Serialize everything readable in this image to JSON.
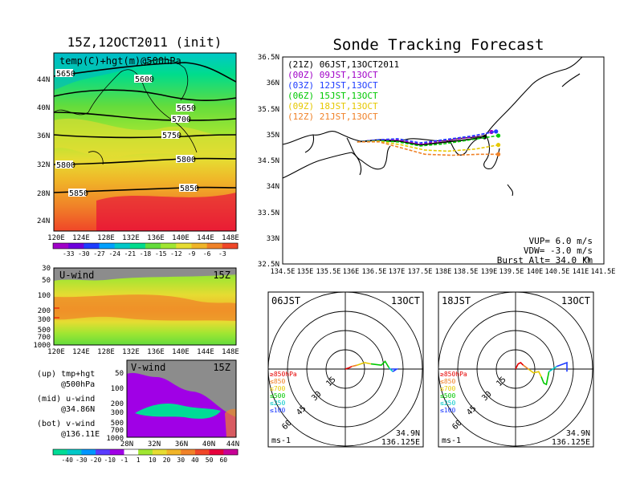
{
  "titles": {
    "left": "15Z,12OCT2011 (init)",
    "right": "Sonde Tracking Forecast"
  },
  "chart_data": [
    {
      "type": "heatmap",
      "panel": "temp500",
      "label": "temp(C)+hgt(m)@500hPa",
      "x_ticks": [
        "120E",
        "124E",
        "128E",
        "132E",
        "136E",
        "140E",
        "144E",
        "148E"
      ],
      "y_ticks": [
        "44N",
        "40N",
        "36N",
        "32N",
        "28N",
        "24N"
      ],
      "contour_labels": [
        "5650",
        "5600",
        "5650",
        "5700",
        "5750",
        "5800",
        "5800",
        "5850",
        "5850"
      ],
      "colorbar": {
        "ticks": [
          "-33",
          "-30",
          "-27",
          "-24",
          "-21",
          "-18",
          "-15",
          "-12",
          "-9",
          "-6",
          "-3"
        ],
        "colors": [
          "#a000c8",
          "#6e00dc",
          "#1e3cff",
          "#00a0ff",
          "#00c8c8",
          "#00dc8c",
          "#64dc3c",
          "#a0e632",
          "#e6dc32",
          "#f0b428",
          "#f08228",
          "#f04628"
        ]
      }
    },
    {
      "type": "heatmap",
      "panel": "u-wind",
      "label": "U-wind",
      "time": "15Z",
      "x_ticks": [
        "120E",
        "124E",
        "128E",
        "132E",
        "136E",
        "140E",
        "144E",
        "148E"
      ],
      "y_ticks": [
        "30",
        "50",
        "100",
        "200",
        "300",
        "500",
        "700",
        "1000"
      ]
    },
    {
      "type": "heatmap",
      "panel": "v-wind",
      "label": "V-wind",
      "time": "15Z",
      "x_ticks": [
        "28N",
        "32N",
        "36N",
        "40N",
        "44N"
      ],
      "y_ticks": [
        "50",
        "100",
        "200",
        "300",
        "500",
        "700",
        "1000"
      ],
      "colorbar": {
        "ticks": [
          "-40",
          "-30",
          "-20",
          "-10",
          "-1",
          "1",
          "10",
          "20",
          "30",
          "40",
          "50",
          "60"
        ],
        "colors": [
          "#00dc96",
          "#00c8c8",
          "#0096ff",
          "#5a3cff",
          "#a000e6",
          "#ffffff",
          "#a0e632",
          "#e6dc32",
          "#f0b428",
          "#f08228",
          "#f04628",
          "#e6003c",
          "#c80096"
        ]
      }
    },
    {
      "type": "line",
      "panel": "tracks",
      "x_ticks": [
        "134.5E",
        "135E",
        "135.5E",
        "136E",
        "136.5E",
        "137E",
        "137.5E",
        "138E",
        "138.5E",
        "139E",
        "139.5E",
        "140E",
        "140.5E",
        "141E",
        "141.5E"
      ],
      "y_ticks": [
        "36.5N",
        "36N",
        "35.5N",
        "35N",
        "34.5N",
        "34N",
        "33.5N",
        "33N",
        "32.5N"
      ],
      "xlim": [
        134.5,
        141.5
      ],
      "ylim": [
        32.5,
        36.5
      ],
      "series": [
        {
          "name": "(21Z)  06JST,13OCT2011",
          "color": "#000000",
          "lon": [
            136.125,
            136.6,
            137.0,
            137.5,
            138.0,
            138.5,
            138.9
          ],
          "lat": [
            34.86,
            34.9,
            34.88,
            34.8,
            34.85,
            34.9,
            34.95
          ]
        },
        {
          "name": "(00Z)  09JST,13OCT",
          "color": "#a000c8",
          "lon": [
            136.125,
            136.6,
            137.0,
            137.5,
            138.0,
            138.6,
            139.05
          ],
          "lat": [
            34.86,
            34.9,
            34.9,
            34.82,
            34.88,
            34.95,
            35.05
          ]
        },
        {
          "name": "(03Z)  12JST,13OCT",
          "color": "#1e3cff",
          "lon": [
            136.125,
            136.6,
            137.0,
            137.5,
            138.0,
            138.6,
            139.15
          ],
          "lat": [
            34.86,
            34.9,
            34.92,
            34.84,
            34.9,
            34.97,
            35.06
          ]
        },
        {
          "name": "(06Z)  15JST,13OCT",
          "color": "#00c800",
          "lon": [
            136.125,
            136.6,
            137.0,
            137.5,
            138.0,
            138.6,
            139.2
          ],
          "lat": [
            34.86,
            34.88,
            34.86,
            34.78,
            34.82,
            34.9,
            34.98
          ]
        },
        {
          "name": "(09Z)  18JST,13OCT",
          "color": "#e6c800",
          "lon": [
            136.125,
            136.6,
            137.1,
            137.6,
            138.1,
            138.7,
            139.2
          ],
          "lat": [
            34.86,
            34.87,
            34.8,
            34.7,
            34.68,
            34.72,
            34.8
          ]
        },
        {
          "name": "(12Z)  21JST,13OCT",
          "color": "#f08228",
          "lon": [
            136.125,
            136.6,
            137.1,
            137.6,
            138.2,
            138.8,
            139.2
          ],
          "lat": [
            34.86,
            34.86,
            34.74,
            34.62,
            34.6,
            34.62,
            34.62
          ]
        }
      ],
      "info": [
        "VUP=  6.0  m/s",
        "VDW= -3.0  m/s",
        "Burst Alt= 34.0  km"
      ]
    },
    {
      "type": "line",
      "panel": "hodograph-06JST",
      "time": "06JST",
      "date": "13OCT",
      "ring_labels": [
        "15",
        "30",
        "45",
        "60"
      ],
      "legend": [
        "≥850hPa",
        "≤850",
        "≤700",
        "≤500",
        "≤250",
        "≤100"
      ],
      "legend_colors": [
        "#e60000",
        "#f08228",
        "#e6c800",
        "#00c800",
        "#00c8c8",
        "#1e3cff"
      ],
      "unit": "ms-1",
      "lat": "34.9N",
      "lon": "136.125E",
      "series": [
        {
          "color": "#e60000",
          "u": [
            0,
            3,
            5
          ],
          "v": [
            0,
            1,
            2
          ]
        },
        {
          "color": "#f08228",
          "u": [
            5,
            9
          ],
          "v": [
            2,
            3
          ]
        },
        {
          "color": "#e6c800",
          "u": [
            9,
            15,
            20
          ],
          "v": [
            3,
            5,
            4
          ]
        },
        {
          "color": "#00c800",
          "u": [
            20,
            28,
            31,
            34
          ],
          "v": [
            4,
            3,
            6,
            1
          ]
        },
        {
          "color": "#00c8c8",
          "u": [
            34,
            37
          ],
          "v": [
            1,
            -2
          ]
        },
        {
          "color": "#1e3cff",
          "u": [
            37,
            40,
            36
          ],
          "v": [
            -2,
            0,
            0
          ]
        }
      ]
    },
    {
      "type": "line",
      "panel": "hodograph-18JST",
      "time": "18JST",
      "date": "13OCT",
      "ring_labels": [
        "15",
        "30",
        "45",
        "60"
      ],
      "legend": [
        "≥850hPa",
        "≤850",
        "≤700",
        "≤500",
        "≤250",
        "≤100"
      ],
      "legend_colors": [
        "#e60000",
        "#f08228",
        "#e6c800",
        "#00c800",
        "#00c8c8",
        "#1e3cff"
      ],
      "unit": "ms-1",
      "lat": "34.9N",
      "lon": "136.125E",
      "series": [
        {
          "color": "#e60000",
          "u": [
            0,
            2,
            4,
            6
          ],
          "v": [
            0,
            4,
            5,
            3
          ]
        },
        {
          "color": "#f08228",
          "u": [
            6,
            10
          ],
          "v": [
            3,
            0
          ]
        },
        {
          "color": "#e6c800",
          "u": [
            10,
            14,
            18,
            20
          ],
          "v": [
            0,
            -3,
            -2,
            -6
          ]
        },
        {
          "color": "#00c800",
          "u": [
            20,
            22,
            24,
            26
          ],
          "v": [
            -6,
            -11,
            -12,
            -2
          ]
        },
        {
          "color": "#00c8c8",
          "u": [
            26,
            32
          ],
          "v": [
            -2,
            2
          ]
        },
        {
          "color": "#1e3cff",
          "u": [
            32,
            40,
            40
          ],
          "v": [
            2,
            5,
            -2
          ]
        }
      ]
    }
  ],
  "v_notes": [
    {
      "a": "(up) tmp+hgt",
      "b": "@500hPa"
    },
    {
      "a": "(mid) u-wind",
      "b": "@34.86N"
    },
    {
      "a": "(bot) v-wind",
      "b": "@136.11E"
    }
  ]
}
